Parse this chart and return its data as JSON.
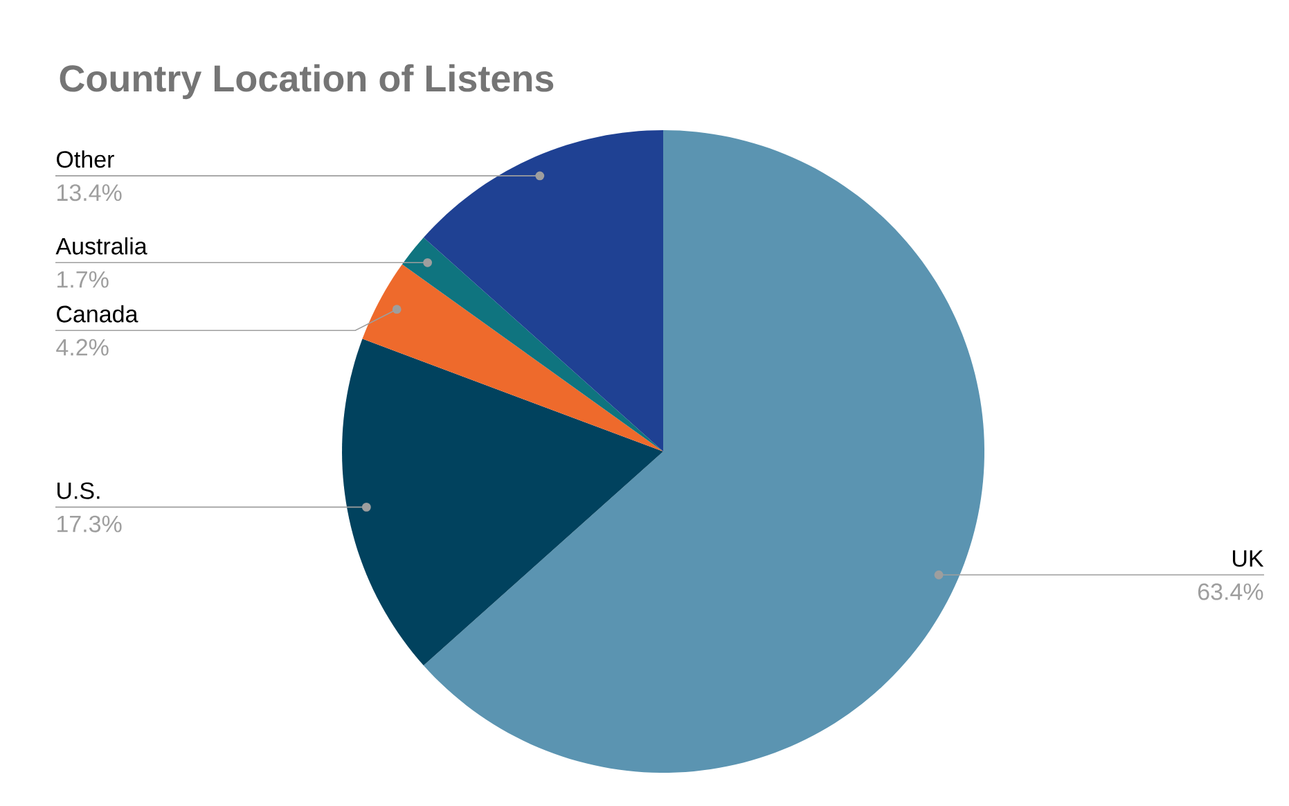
{
  "chart_data": {
    "type": "pie",
    "title": "Country Location of Listens",
    "categories": [
      "UK",
      "U.S.",
      "Canada",
      "Australia",
      "Other"
    ],
    "values": [
      63.4,
      17.3,
      4.2,
      1.7,
      13.4
    ],
    "value_labels": [
      "63.4%",
      "17.3%",
      "4.2%",
      "1.7%",
      "13.4%"
    ],
    "colors": [
      "#5b94b1",
      "#01425e",
      "#ee6a2c",
      "#0f747f",
      "#1f4193"
    ]
  }
}
